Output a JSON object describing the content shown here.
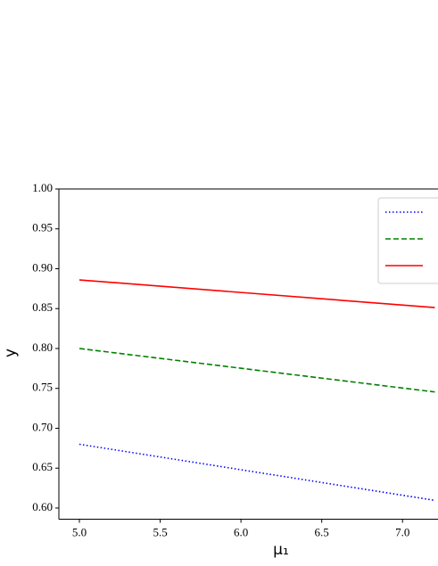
{
  "chart_data": {
    "type": "line",
    "xlabel": "μ₁",
    "ylabel": "y",
    "x": [
      5.0,
      7.2
    ],
    "series": [
      {
        "color": "#0000ff",
        "dash": "dotted",
        "values": [
          0.68,
          0.6096
        ]
      },
      {
        "color": "#008000",
        "dash": "dashed",
        "values": [
          0.8,
          0.7455
        ]
      },
      {
        "color": "#ff0000",
        "dash": "solid",
        "values": [
          0.886,
          0.8513
        ]
      }
    ],
    "xlim": [
      4.873,
      7.225
    ],
    "ylim": [
      0.586,
      1.0
    ],
    "xticks": [
      {
        "value": 5,
        "label": "5.0"
      },
      {
        "value": 5.5,
        "label": "5.5"
      },
      {
        "value": 6,
        "label": "6.0"
      },
      {
        "value": 6.5,
        "label": "6.5"
      },
      {
        "value": 7,
        "label": "7.0"
      }
    ],
    "yticks": [
      {
        "value": 0.6,
        "label": "0.60"
      },
      {
        "value": 0.65,
        "label": "0.65"
      },
      {
        "value": 0.7,
        "label": "0.70"
      },
      {
        "value": 0.75,
        "label": "0.75"
      },
      {
        "value": 0.8,
        "label": "0.80"
      },
      {
        "value": 0.85,
        "label": "0.85"
      },
      {
        "value": 0.9,
        "label": "0.90"
      },
      {
        "value": 0.95,
        "label": "0.95"
      },
      {
        "value": 1.0,
        "label": "1.00"
      }
    ],
    "legend": "upper right",
    "grid": false
  }
}
